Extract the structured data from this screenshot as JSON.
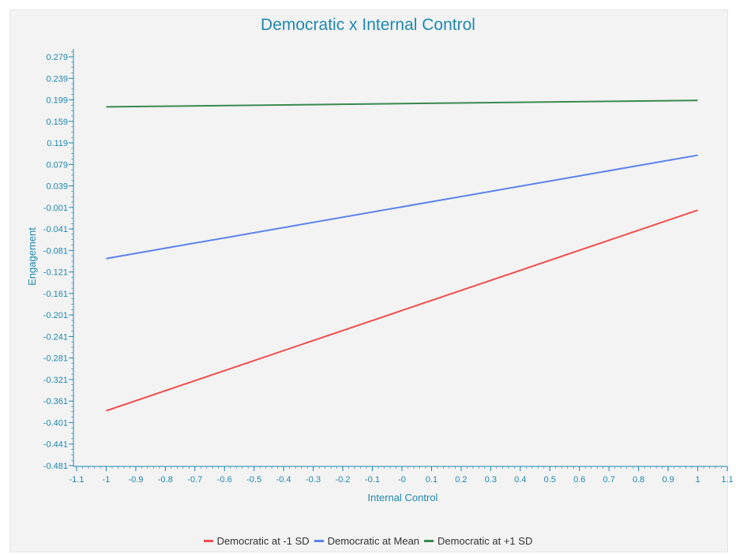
{
  "chart_data": {
    "type": "line",
    "title": "Democratic x Internal Control",
    "xlabel": "Internal Control",
    "ylabel": "Engagement",
    "xlim": [
      -1.1,
      1.1
    ],
    "ylim": [
      -0.481,
      0.299
    ],
    "x_ticks": [
      "-1.1",
      "-1",
      "-0.9",
      "-0.8",
      "-0.7",
      "-0.6",
      "-0.5",
      "-0.4",
      "-0.3",
      "-0.2",
      "-0.1",
      "-0",
      "0.1",
      "0.2",
      "0.3",
      "0.4",
      "0.5",
      "0.6",
      "0.7",
      "0.8",
      "0.9",
      "1",
      "1.1"
    ],
    "y_ticks": [
      "0.279",
      "0.239",
      "0.199",
      "0.159",
      "0.119",
      "0.079",
      "0.039",
      "-0.001",
      "-0.041",
      "-0.081",
      "-0.121",
      "-0.161",
      "-0.201",
      "-0.241",
      "-0.281",
      "-0.321",
      "-0.361",
      "-0.401",
      "-0.441",
      "-0.481"
    ],
    "grid": false,
    "legend_position": "bottom",
    "series": [
      {
        "name": "Democratic at -1 SD",
        "color": "#f04e4e",
        "x": [
          -1,
          1
        ],
        "y": [
          -0.379,
          -0.006
        ]
      },
      {
        "name": "Democratic at Mean",
        "color": "#5b82f0",
        "x": [
          -1,
          1
        ],
        "y": [
          -0.096,
          0.096
        ]
      },
      {
        "name": "Democratic at +1 SD",
        "color": "#3a8a4f",
        "x": [
          -1,
          1
        ],
        "y": [
          0.186,
          0.198
        ]
      }
    ]
  }
}
